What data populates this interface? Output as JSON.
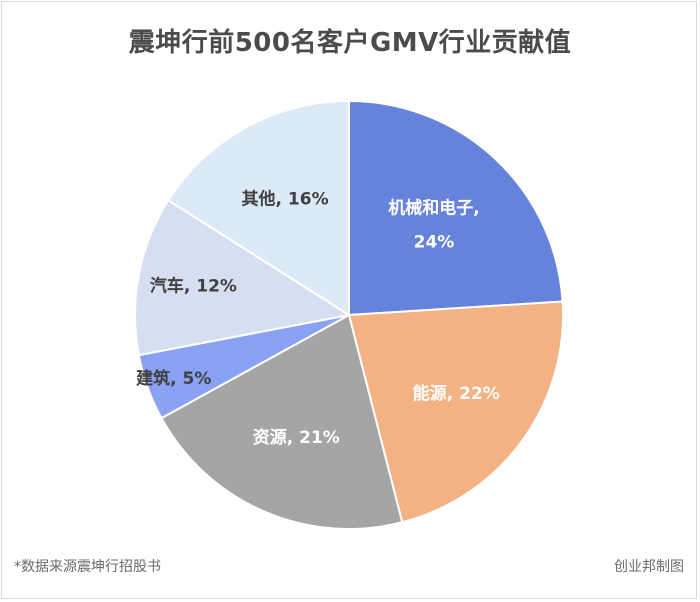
{
  "chart_data": {
    "type": "pie",
    "title": "震坤行前500名客户GMV行业贡献值",
    "slices": [
      {
        "label": "机械和电子",
        "value": 24,
        "display": [
          "机械和电子,",
          "24%"
        ],
        "color": "#6683dc",
        "text_color": "#ffffff"
      },
      {
        "label": "能源",
        "value": 22,
        "display": [
          "能源, 22%"
        ],
        "color": "#f4b183",
        "text_color": "#ffffff"
      },
      {
        "label": "资源",
        "value": 21,
        "display": [
          "资源, 21%"
        ],
        "color": "#a5a5a5",
        "text_color": "#ffffff"
      },
      {
        "label": "建筑",
        "value": 5,
        "display": [
          "建筑, 5%"
        ],
        "color": "#8aa2f4",
        "text_color": "#404040"
      },
      {
        "label": "汽车",
        "value": 12,
        "display": [
          "汽车, 12%"
        ],
        "color": "#d6dff2",
        "text_color": "#404040"
      },
      {
        "label": "其他",
        "value": 16,
        "display": [
          "其他, 16%"
        ],
        "color": "#dce9f6",
        "text_color": "#404040"
      }
    ]
  },
  "footer": {
    "source": "*数据来源震坤行招股书",
    "credit": "创业邦制图"
  }
}
